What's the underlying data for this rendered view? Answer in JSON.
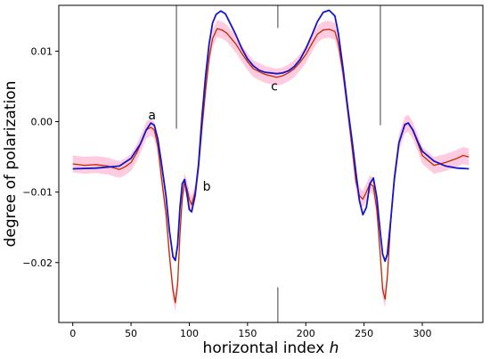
{
  "chart_data": {
    "type": "line",
    "xlabel": "horizontal index",
    "xlabel_var": "h",
    "ylabel": "degree of polarization",
    "xlim": [
      -12,
      352
    ],
    "ylim": [
      -0.0285,
      0.0165
    ],
    "x_ticks": [
      0,
      50,
      100,
      150,
      200,
      250,
      300
    ],
    "x_tick_labels": [
      "0",
      "50",
      "100",
      "150",
      "200",
      "250",
      "300"
    ],
    "y_ticks": [
      -0.02,
      -0.01,
      0.0,
      0.01
    ],
    "y_tick_labels": [
      "−0.02",
      "−0.01",
      "0.00",
      "0.01"
    ],
    "grid": false,
    "vertical_lines": [
      {
        "x": 89,
        "segments": [
          [
            0.0165,
            -0.001
          ],
          [
            -0.0285,
            -0.0285
          ]
        ]
      },
      {
        "x": 176,
        "segments": [
          [
            0.0165,
            0.0133
          ],
          [
            -0.0235,
            -0.0285
          ]
        ]
      },
      {
        "x": 264,
        "segments": [
          [
            0.0165,
            -0.0005
          ],
          [
            -0.0285,
            -0.0285
          ]
        ]
      }
    ],
    "series": [
      {
        "color": "#1515c8",
        "x": [
          0,
          20,
          40,
          50,
          58,
          63,
          67,
          70,
          73,
          76,
          80,
          83,
          86,
          88,
          90,
          92,
          94,
          96,
          98,
          100,
          102,
          105,
          108,
          111,
          114,
          117,
          120,
          123,
          127,
          131,
          135,
          140,
          145,
          150,
          155,
          160,
          165,
          170,
          175,
          180,
          185,
          190,
          195,
          200,
          205,
          210,
          215,
          220,
          225,
          228,
          232,
          236,
          240,
          243,
          246,
          249,
          252,
          255,
          258,
          261,
          264,
          266,
          268,
          270,
          273,
          276,
          280,
          285,
          288,
          292,
          296,
          300,
          310,
          320,
          330,
          340
        ],
        "y": [
          -0.0067,
          -0.0066,
          -0.0063,
          -0.0052,
          -0.0032,
          -0.0012,
          -0.0002,
          -0.0005,
          -0.0025,
          -0.0058,
          -0.0105,
          -0.0155,
          -0.0192,
          -0.0197,
          -0.0175,
          -0.0122,
          -0.0088,
          -0.0082,
          -0.0102,
          -0.0125,
          -0.0128,
          -0.0105,
          -0.006,
          0.0008,
          0.0065,
          0.011,
          0.014,
          0.0152,
          0.0157,
          0.0153,
          0.014,
          0.0123,
          0.0104,
          0.0089,
          0.0079,
          0.0073,
          0.007,
          0.0069,
          0.0068,
          0.0069,
          0.0072,
          0.0078,
          0.0088,
          0.0103,
          0.0122,
          0.0142,
          0.0155,
          0.0158,
          0.015,
          0.0125,
          0.0075,
          0.002,
          -0.003,
          -0.0072,
          -0.0112,
          -0.0132,
          -0.0122,
          -0.0088,
          -0.008,
          -0.0108,
          -0.0158,
          -0.0188,
          -0.0198,
          -0.0188,
          -0.0138,
          -0.0082,
          -0.003,
          -0.0004,
          -0.0002,
          -0.0012,
          -0.0028,
          -0.0042,
          -0.0056,
          -0.0063,
          -0.0066,
          -0.0067
        ]
      },
      {
        "color": "#c32a00",
        "band_color": "#ffcbe0",
        "x": [
          0,
          10,
          20,
          30,
          40,
          45,
          50,
          55,
          60,
          63,
          67,
          70,
          73,
          76,
          80,
          83,
          86,
          88,
          90,
          92,
          94,
          96,
          98,
          100,
          102,
          105,
          108,
          111,
          114,
          117,
          120,
          124,
          128,
          132,
          136,
          140,
          145,
          150,
          155,
          160,
          165,
          170,
          175,
          180,
          185,
          190,
          195,
          200,
          205,
          210,
          215,
          220,
          225,
          228,
          232,
          236,
          240,
          243,
          246,
          249,
          252,
          255,
          258,
          261,
          264,
          266,
          268,
          270,
          273,
          276,
          280,
          285,
          288,
          292,
          296,
          300,
          310,
          320,
          330,
          335,
          340
        ],
        "y": [
          -0.006,
          -0.0062,
          -0.0061,
          -0.0063,
          -0.0068,
          -0.0064,
          -0.0058,
          -0.0044,
          -0.0025,
          -0.0012,
          -0.0008,
          -0.0012,
          -0.0035,
          -0.0078,
          -0.013,
          -0.019,
          -0.024,
          -0.0257,
          -0.023,
          -0.016,
          -0.0108,
          -0.0085,
          -0.0095,
          -0.011,
          -0.0118,
          -0.01,
          -0.0065,
          -0.0008,
          0.0045,
          0.009,
          0.0118,
          0.0132,
          0.013,
          0.0126,
          0.0118,
          0.011,
          0.0097,
          0.0085,
          0.0075,
          0.0071,
          0.0067,
          0.0065,
          0.0063,
          0.0065,
          0.0069,
          0.0075,
          0.0084,
          0.0095,
          0.011,
          0.0124,
          0.013,
          0.0131,
          0.0128,
          0.011,
          0.0068,
          0.0015,
          -0.004,
          -0.0085,
          -0.0105,
          -0.011,
          -0.01,
          -0.0088,
          -0.0092,
          -0.0125,
          -0.019,
          -0.0238,
          -0.0252,
          -0.022,
          -0.014,
          -0.008,
          -0.003,
          -0.0005,
          -0.0002,
          -0.0013,
          -0.003,
          -0.0048,
          -0.0062,
          -0.0058,
          -0.0052,
          -0.0048,
          -0.005
        ]
      }
    ],
    "annotations": [
      {
        "text": "a",
        "x": 68,
        "y": 0.0003
      },
      {
        "text": "b",
        "x": 115,
        "y": -0.0098
      },
      {
        "text": "c",
        "x": 173,
        "y": 0.0044
      }
    ]
  }
}
